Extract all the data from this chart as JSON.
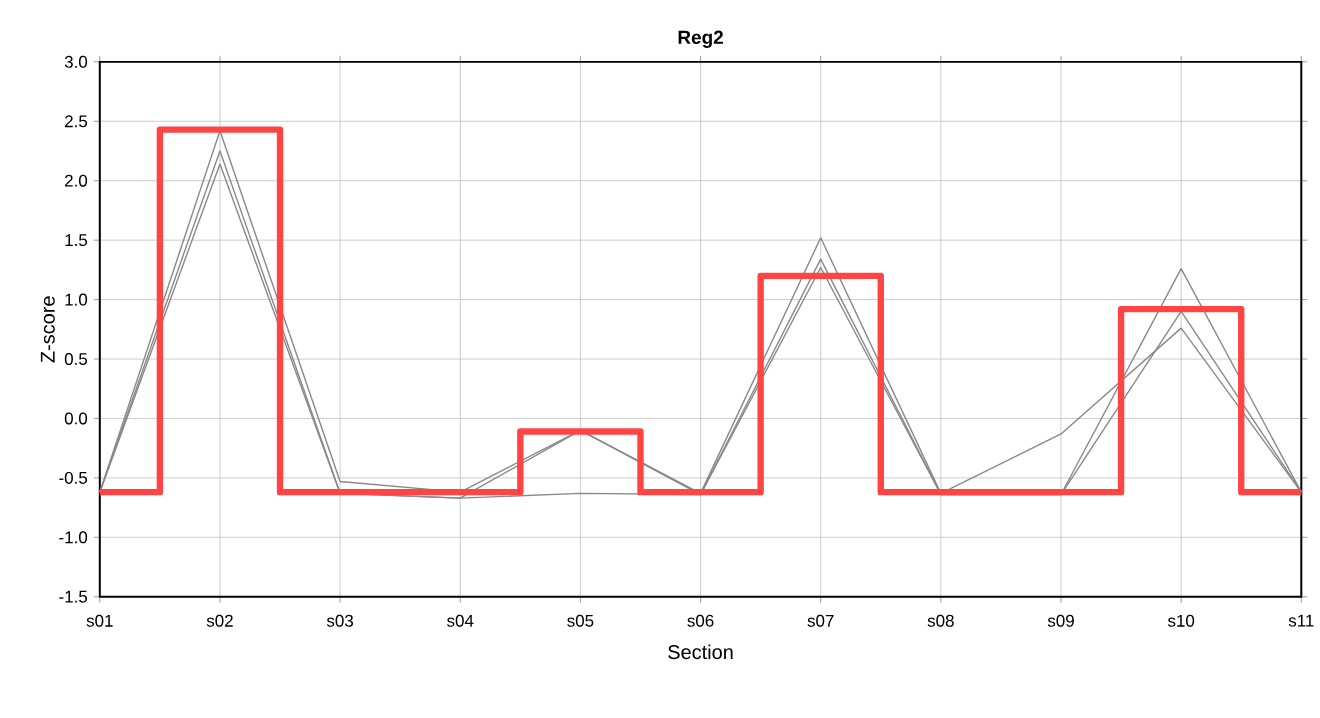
{
  "chart_data": {
    "type": "line",
    "title": "Reg2",
    "xlabel": "Section",
    "ylabel": "Z-score",
    "categories": [
      "s01",
      "s02",
      "s03",
      "s04",
      "s05",
      "s06",
      "s07",
      "s08",
      "s09",
      "s10",
      "s11"
    ],
    "series": [
      {
        "color": "#888888",
        "values": [
          -0.62,
          2.42,
          -0.53,
          -0.62,
          -0.1,
          -0.63,
          1.52,
          -0.63,
          -0.13,
          0.76,
          -0.62
        ]
      },
      {
        "color": "#888888",
        "values": [
          -0.62,
          2.25,
          -0.63,
          -0.67,
          -0.1,
          -0.64,
          1.34,
          -0.64,
          -0.64,
          1.26,
          -0.62
        ]
      },
      {
        "color": "#888888",
        "values": [
          -0.62,
          2.14,
          -0.63,
          -0.67,
          -0.63,
          -0.64,
          1.27,
          -0.64,
          -0.64,
          0.9,
          -0.62
        ]
      },
      {
        "type": "step",
        "color": "#ff4444",
        "values": [
          -0.62,
          2.43,
          -0.62,
          -0.62,
          -0.11,
          -0.62,
          1.2,
          -0.62,
          -0.62,
          0.92,
          -0.62
        ]
      }
    ],
    "ylim": [
      -1.5,
      3.0
    ],
    "yticks": [
      {
        "value": -1.5,
        "label": "-1.5"
      },
      {
        "value": -1.0,
        "label": "-1.0"
      },
      {
        "value": -0.5,
        "label": "-0.5"
      },
      {
        "value": 0,
        "label": "0.0"
      },
      {
        "value": 0.5,
        "label": "0.5"
      },
      {
        "value": 1.0,
        "label": "1.0"
      },
      {
        "value": 1.5,
        "label": "1.5"
      },
      {
        "value": 2.0,
        "label": "2.0"
      },
      {
        "value": 2.5,
        "label": "2.5"
      },
      {
        "value": 3.0,
        "label": "3.0"
      }
    ],
    "grid": true
  }
}
